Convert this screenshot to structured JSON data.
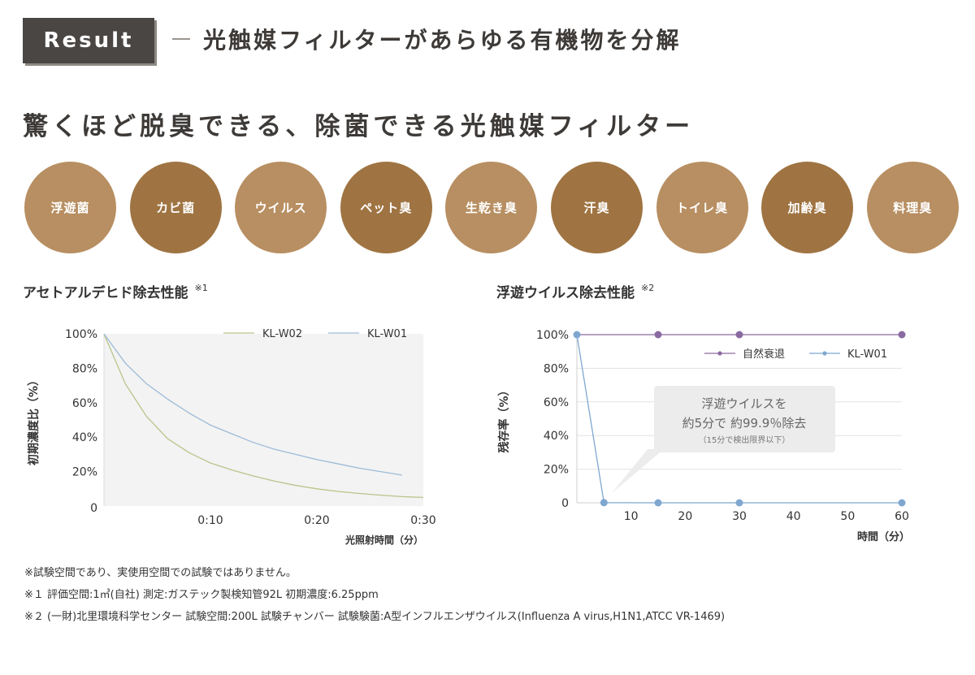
{
  "header": {
    "badge": "Result",
    "title": "光触媒フィルターがあらゆる有機物を分解"
  },
  "main_heading": "驚くほど脱臭できる、除菌できる光触媒フィルター",
  "categories": [
    {
      "label": "浮遊菌",
      "color": "#b88f62"
    },
    {
      "label": "カビ菌",
      "color": "#9f7442"
    },
    {
      "label": "ウイルス",
      "color": "#b88f62"
    },
    {
      "label": "ペット臭",
      "color": "#9f7442"
    },
    {
      "label": "生乾き臭",
      "color": "#b88f62"
    },
    {
      "label": "汗臭",
      "color": "#9f7442"
    },
    {
      "label": "トイレ臭",
      "color": "#b88f62"
    },
    {
      "label": "加齢臭",
      "color": "#9f7442"
    },
    {
      "label": "料理臭",
      "color": "#b88f62"
    }
  ],
  "chart_acetaldehyde": {
    "title": "アセトアルデヒド除去性能",
    "note_mark": "※1",
    "chart_data": {
      "type": "line",
      "title": "アセトアルデヒド除去性能",
      "xlabel": "光照射時間（分）",
      "ylabel": "初期濃度比（%）",
      "xlim": [
        0,
        30
      ],
      "ylim": [
        0,
        100
      ],
      "x_ticks": [
        "0:10",
        "0:20",
        "0:30"
      ],
      "y_ticks": [
        "100%",
        "80%",
        "60%",
        "40%",
        "20%",
        "0"
      ],
      "series": [
        {
          "name": "KL-W02",
          "color": "#b9c48a",
          "x": [
            0,
            2,
            4,
            6,
            8,
            10,
            12,
            14,
            16,
            18,
            20,
            22,
            24,
            26,
            28,
            30
          ],
          "y": [
            100,
            71,
            52,
            39,
            31,
            25,
            21,
            17.5,
            14.5,
            12,
            10,
            8.5,
            7.3,
            6.3,
            5.5,
            5
          ]
        },
        {
          "name": "KL-W01",
          "color": "#9dbbd8",
          "x": [
            0,
            2,
            4,
            6,
            8,
            10,
            12,
            14,
            16,
            18,
            20,
            22,
            24,
            26,
            28
          ],
          "y": [
            100,
            83,
            71,
            62,
            54,
            47,
            42,
            37,
            33,
            30,
            27,
            24.5,
            22,
            20,
            18
          ]
        }
      ]
    }
  },
  "chart_virus": {
    "title": "浮遊ウイルス除去性能",
    "note_mark": "※2",
    "callout": {
      "line1": "浮遊ウイルスを",
      "line2": "約5分で 約99.9％除去",
      "line3": "（15分で検出限界以下）"
    },
    "chart_data": {
      "type": "line",
      "title": "浮遊ウイルス除去性能",
      "xlabel": "時間（分）",
      "ylabel": "残存率（%）",
      "xlim": [
        0,
        60
      ],
      "ylim": [
        0,
        100
      ],
      "x_ticks": [
        "10",
        "20",
        "30",
        "40",
        "50",
        "60"
      ],
      "y_ticks": [
        "100%",
        "80%",
        "60%",
        "40%",
        "20%",
        "0"
      ],
      "series": [
        {
          "name": "自然衰退",
          "color": "#8a6aa0",
          "x": [
            15,
            30,
            60
          ],
          "y": [
            100,
            100,
            100
          ]
        },
        {
          "name": "KL-W01",
          "color": "#7fa7cf",
          "x": [
            0,
            5,
            15,
            30,
            60
          ],
          "y": [
            100,
            0.1,
            0,
            0,
            0
          ]
        }
      ]
    }
  },
  "notes": [
    "※試験空間であり、実使用空間での試験ではありません。",
    "※１ 評価空間:1㎥(自社) 測定:ガステック製検知管92L 初期濃度:6.25ppm",
    "※２ (一財)北里環境科学センター 試験空間:200L 試験チャンバー 試験験菌:A型インフルエンザウイルス(Influenza A virus,H1N1,ATCC VR-1469)"
  ]
}
